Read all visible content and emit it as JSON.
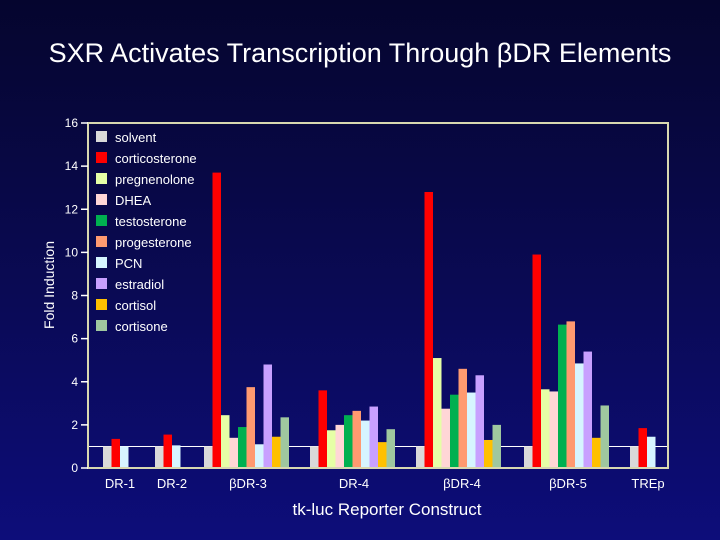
{
  "slide": {
    "title": "SXR Activates Transcription Through βDR Elements"
  },
  "chart_data": {
    "type": "bar",
    "title": "SXR Activates Transcription Through βDR Elements",
    "xlabel": "tk-luc Reporter Construct",
    "ylabel": "Fold Induction",
    "ylim": [
      0,
      16
    ],
    "yticks": [
      0,
      2,
      4,
      6,
      8,
      10,
      12,
      14,
      16
    ],
    "baseline": 1,
    "categories": [
      "DR-1",
      "DR-2",
      "βDR-3",
      "DR-4",
      "βDR-4",
      "βDR-5",
      "TREp"
    ],
    "legend_position": "top-left",
    "series": [
      {
        "name": "solvent",
        "color": "#d9d9d9",
        "values": [
          1,
          1,
          1,
          1,
          1,
          1,
          1
        ]
      },
      {
        "name": "corticosterone",
        "color": "#ff0000",
        "values": [
          1.35,
          1.55,
          13.7,
          3.6,
          12.8,
          9.9,
          1.85
        ]
      },
      {
        "name": "pregnenolone",
        "color": "#e6ffa6",
        "values": [
          null,
          null,
          2.45,
          1.75,
          5.1,
          3.65,
          null
        ]
      },
      {
        "name": "DHEA",
        "color": "#ffd6d6",
        "values": [
          null,
          null,
          1.4,
          2.0,
          2.75,
          3.55,
          null
        ]
      },
      {
        "name": "testosterone",
        "color": "#00b050",
        "values": [
          null,
          null,
          1.9,
          2.45,
          3.4,
          6.65,
          null
        ]
      },
      {
        "name": "progesterone",
        "color": "#ff9a70",
        "values": [
          null,
          null,
          3.75,
          2.65,
          4.6,
          6.8,
          null
        ]
      },
      {
        "name": "PCN",
        "color": "#d6f5ff",
        "values": [
          1.0,
          1.05,
          1.1,
          2.2,
          3.5,
          4.85,
          1.45
        ]
      },
      {
        "name": "estradiol",
        "color": "#c8a0ff",
        "values": [
          null,
          null,
          4.8,
          2.85,
          4.3,
          5.4,
          null
        ]
      },
      {
        "name": "cortisol",
        "color": "#ffc000",
        "values": [
          null,
          null,
          1.45,
          1.2,
          1.3,
          1.4,
          null
        ]
      },
      {
        "name": "cortisone",
        "color": "#9fc79f",
        "values": [
          null,
          null,
          2.35,
          1.8,
          2.0,
          2.9,
          null
        ]
      }
    ]
  }
}
